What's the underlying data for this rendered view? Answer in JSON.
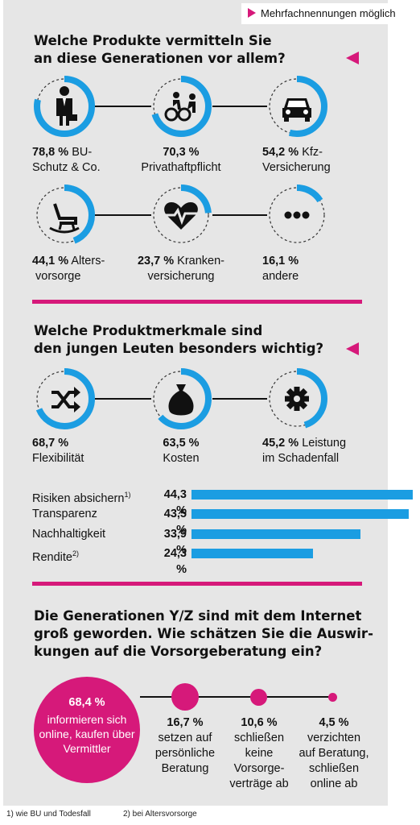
{
  "note": "Mehrfachnennungen möglich",
  "section1": {
    "title_line1": "Welche Produkte vermitteln Sie",
    "title_line2": "an diese Generationen vor allem?",
    "items": [
      {
        "value": "78,8 %",
        "label_l1": "BU-",
        "label_l2": "Schutz & Co.",
        "icon": "businessman-icon"
      },
      {
        "value": "70,3 %",
        "label_l1": "",
        "label_l2": "Privathaftpflicht",
        "icon": "cyclist-collision-icon"
      },
      {
        "value": "54,2 %",
        "label_l1": "Kfz-",
        "label_l2": "Versicherung",
        "icon": "car-icon"
      },
      {
        "value": "44,1 %",
        "label_l1": "Alters-",
        "label_l2": "vorsorge",
        "icon": "rocking-chair-icon"
      },
      {
        "value": "23,7 %",
        "label_l1": "Kranken-",
        "label_l2": "versicherung",
        "icon": "heartbeat-icon"
      },
      {
        "value": "16,1 %",
        "label_l1": "",
        "label_l2": "andere",
        "icon": "more-dots-icon"
      }
    ]
  },
  "section2": {
    "title_line1": "Welche Produktmerkmale sind",
    "title_line2": "den jungen Leuten besonders wichtig?",
    "items": [
      {
        "value": "68,7 %",
        "label_l1": "",
        "label_l2": "Flexibilität",
        "icon": "shuffle-icon"
      },
      {
        "value": "63,5 %",
        "label_l1": "",
        "label_l2": "Kosten",
        "icon": "money-bag-icon"
      },
      {
        "value": "45,2 %",
        "label_l1": "Leistung",
        "label_l2": "im Schadenfall",
        "icon": "gear-icon"
      }
    ],
    "bars": [
      {
        "label": "Risiken absichern",
        "sup": "1)",
        "value_text": "44,3 %"
      },
      {
        "label": "Transparenz",
        "sup": "",
        "value_text": "43,5 %"
      },
      {
        "label": "Nachhaltigkeit",
        "sup": "",
        "value_text": "33,9 %"
      },
      {
        "label": "Rendite",
        "sup": "2)",
        "value_text": "24,3 %"
      }
    ]
  },
  "section3": {
    "title_line1": "Die Generationen Y/Z sind mit dem Internet",
    "title_line2": "groß geworden. Wie schätzen Sie die Auswir-",
    "title_line3": "kungen auf die Vorsorgeberatung ein?",
    "big": {
      "value": "68,4 %",
      "text": "informieren sich online, kaufen über Vermittler"
    },
    "items": [
      {
        "value": "16,7 %",
        "l1": "setzen auf",
        "l2": "persönliche",
        "l3": "Beratung",
        "l4": ""
      },
      {
        "value": "10,6 %",
        "l1": "schließen",
        "l2": "keine",
        "l3": "Vorsorge-",
        "l4": "verträge ab"
      },
      {
        "value": "4,5 %",
        "l1": "verzichten",
        "l2": "auf Beratung,",
        "l3": "schließen",
        "l4": "online ab"
      }
    ]
  },
  "footnotes": {
    "f1": "1) wie BU und Todesfall",
    "f2": "2) bei Altersvorsorge"
  },
  "colors": {
    "accent": "#d6197a",
    "ring": "#1b9de2",
    "panel": "#e6e6e6"
  },
  "chart_data": [
    {
      "type": "donut",
      "title": "Welche Produkte vermitteln Sie an diese Generationen vor allem?",
      "categories": [
        "BU-Schutz & Co.",
        "Privathaftpflicht",
        "Kfz-Versicherung",
        "Altersvorsorge",
        "Krankenversicherung",
        "andere"
      ],
      "values": [
        78.8,
        70.3,
        54.2,
        44.1,
        23.7,
        16.1
      ],
      "unit": "%"
    },
    {
      "type": "donut",
      "title": "Welche Produktmerkmale sind den jungen Leuten besonders wichtig?",
      "categories": [
        "Flexibilität",
        "Kosten",
        "Leistung im Schadenfall"
      ],
      "values": [
        68.7,
        63.5,
        45.2
      ],
      "unit": "%"
    },
    {
      "type": "bar",
      "orientation": "horizontal",
      "categories": [
        "Risiken absichern",
        "Transparenz",
        "Nachhaltigkeit",
        "Rendite"
      ],
      "values": [
        44.3,
        43.5,
        33.9,
        24.3
      ],
      "unit": "%"
    },
    {
      "type": "bubble",
      "title": "Die Generationen Y/Z sind mit dem Internet groß geworden. Wie schätzen Sie die Auswirkungen auf die Vorsorgeberatung ein?",
      "categories": [
        "informieren sich online, kaufen über Vermittler",
        "setzen auf persönliche Beratung",
        "schließen keine Vorsorgeverträge ab",
        "verzichten auf Beratung, schließen online ab"
      ],
      "values": [
        68.4,
        16.7,
        10.6,
        4.5
      ],
      "unit": "%"
    }
  ]
}
